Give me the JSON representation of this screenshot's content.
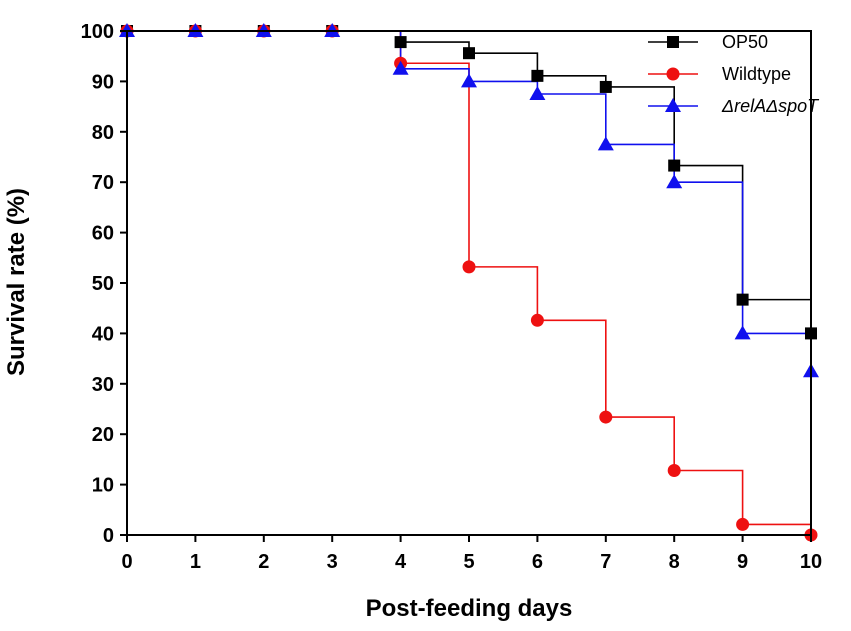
{
  "chart_data": {
    "type": "line",
    "subtype": "step (Kaplan-Meier survival)",
    "title": "",
    "xlabel": "Post-feeding days",
    "ylabel": "Survival rate (%)",
    "xlim": [
      0,
      10
    ],
    "ylim": [
      0,
      100
    ],
    "x_ticks": [
      "0",
      "1",
      "2",
      "3",
      "4",
      "5",
      "6",
      "7",
      "8",
      "9",
      "10"
    ],
    "y_ticks": [
      "0",
      "10",
      "20",
      "30",
      "40",
      "50",
      "60",
      "70",
      "80",
      "90",
      "100"
    ],
    "grid": false,
    "legend_position": "top-right",
    "x": [
      0,
      1,
      2,
      3,
      4,
      5,
      6,
      7,
      8,
      9,
      10
    ],
    "series": [
      {
        "name": "OP50",
        "color": "#000000",
        "marker": "square",
        "values": [
          100,
          100,
          100,
          100,
          97.8,
          95.6,
          91.1,
          88.9,
          73.3,
          46.7,
          40
        ]
      },
      {
        "name": "Wildtype",
        "color": "#ee1111",
        "marker": "circle",
        "values": [
          100,
          100,
          100,
          100,
          93.6,
          53.2,
          42.6,
          23.4,
          12.8,
          2.1,
          0
        ]
      },
      {
        "name": "ΔrelAΔspoT",
        "color": "#1010ee",
        "marker": "triangle",
        "italic": true,
        "values": [
          100,
          100,
          100,
          100,
          92.5,
          90,
          87.5,
          77.5,
          70,
          40,
          32.5
        ]
      }
    ]
  }
}
